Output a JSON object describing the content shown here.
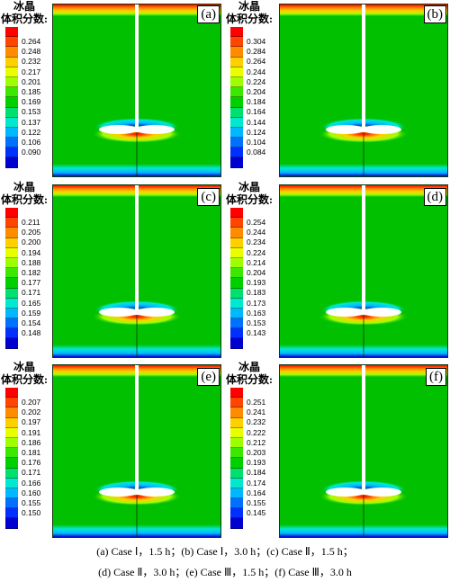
{
  "legend_title": [
    "冰晶",
    "体积分数:"
  ],
  "colors": [
    "#ff0000",
    "#ff4500",
    "#ff8c00",
    "#ffd000",
    "#e8ff00",
    "#9eff00",
    "#3ce800",
    "#00d000",
    "#00e070",
    "#00e8d0",
    "#00b8ff",
    "#0070ff",
    "#0030ff",
    "#0000d0"
  ],
  "panels": [
    {
      "label": "(a)",
      "ticks": [
        "0.264",
        "0.248",
        "0.232",
        "0.217",
        "0.201",
        "0.185",
        "0.169",
        "0.153",
        "0.137",
        "0.122",
        "0.106",
        "0.090"
      ]
    },
    {
      "label": "(b)",
      "ticks": [
        "0.304",
        "0.284",
        "0.264",
        "0.244",
        "0.224",
        "0.204",
        "0.184",
        "0.164",
        "0.144",
        "0.124",
        "0.104",
        "0.084"
      ]
    },
    {
      "label": "(c)",
      "ticks": [
        "0.211",
        "0.205",
        "0.200",
        "0.194",
        "0.188",
        "0.182",
        "0.177",
        "0.171",
        "0.165",
        "0.159",
        "0.154",
        "0.148"
      ]
    },
    {
      "label": "(d)",
      "ticks": [
        "0.254",
        "0.244",
        "0.234",
        "0.224",
        "0.214",
        "0.204",
        "0.193",
        "0.183",
        "0.173",
        "0.163",
        "0.153",
        "0.143"
      ]
    },
    {
      "label": "(e)",
      "ticks": [
        "0.207",
        "0.202",
        "0.197",
        "0.191",
        "0.186",
        "0.181",
        "0.176",
        "0.171",
        "0.166",
        "0.160",
        "0.155",
        "0.150"
      ]
    },
    {
      "label": "(f)",
      "ticks": [
        "0.251",
        "0.241",
        "0.232",
        "0.222",
        "0.212",
        "0.203",
        "0.193",
        "0.184",
        "0.174",
        "0.164",
        "0.155",
        "0.145"
      ]
    }
  ],
  "caption": {
    "line1": "(a) Case Ⅰ，1.5 h；(b) Case Ⅰ，3.0 h；(c) Case Ⅱ，1.5 h；",
    "line2": "(d) Case Ⅱ，3.0 h；(e) Case Ⅲ，1.5 h；(f) Case Ⅲ，3.0 h"
  }
}
